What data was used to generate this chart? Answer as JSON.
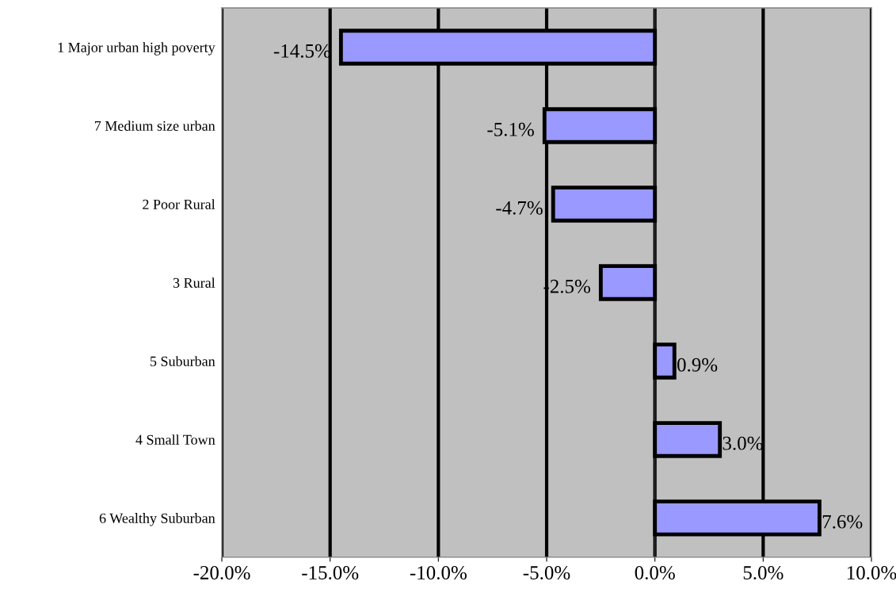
{
  "chart_data": {
    "type": "bar",
    "orientation": "horizontal",
    "categories": [
      "1 Major urban high poverty",
      "7 Medium size urban",
      "2 Poor Rural",
      "3 Rural",
      "5 Suburban",
      "4 Small Town",
      "6 Wealthy Suburban"
    ],
    "values": [
      -14.5,
      -5.1,
      -4.7,
      -2.5,
      0.9,
      3.0,
      7.6
    ],
    "value_labels": [
      "-14.5%",
      "-5.1%",
      "-4.7%",
      "-2.5%",
      "0.9%",
      "3.0%",
      "7.6%"
    ],
    "color": "#9999ff",
    "xlim": [
      -20,
      10
    ],
    "xticks": [
      {
        "value": -20,
        "label": "-20.0%"
      },
      {
        "value": -15,
        "label": "-15.0%"
      },
      {
        "value": -10,
        "label": "-10.0%"
      },
      {
        "value": -5,
        "label": "-5.0%"
      },
      {
        "value": 0,
        "label": "0.0%"
      },
      {
        "value": 5,
        "label": "5.0%"
      },
      {
        "value": 10,
        "label": "10.0%"
      }
    ],
    "grid": "x",
    "legend": false
  }
}
